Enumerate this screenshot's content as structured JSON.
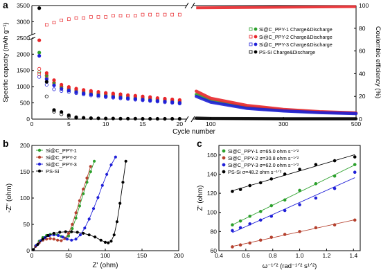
{
  "colors": {
    "g1": "#2ca02c",
    "g2": "#b5412e",
    "g3": "#2020d8",
    "ps": "#000000",
    "eff_red": "#e8262a"
  },
  "panels": [
    {
      "letter": "a",
      "chart_data": {
        "type": "scatter",
        "xlabel": "Cycle number",
        "ylabel": "Specific capacity (mAh g⁻¹)",
        "y2label": "Coulombic efficiency (%)",
        "xlim_left": [
          0,
          21
        ],
        "xlim_right": [
          50,
          500
        ],
        "xticks_left": [
          0,
          5,
          10,
          15,
          20
        ],
        "xticks_right": [
          100,
          300,
          500
        ],
        "ylim": [
          0,
          3500
        ],
        "yticks": [
          0,
          500,
          1000,
          1500,
          2000,
          2500,
          3000,
          3500
        ],
        "y2lim": [
          0,
          100
        ],
        "y2ticks": [
          0,
          20,
          40,
          60,
          80,
          100
        ],
        "legend": [
          "Si@C_PPY-1 Charge&Discharge",
          "Si@C_PPY-2 Charge&Discharge",
          "Si@C_PPY-3 Charge&Discharge",
          "PS-Si Charge&Discharge"
        ],
        "legend_placement": "right",
        "series": [
          {
            "name": "Si@C_PPY-1",
            "color": "g1",
            "charge_x": [
              1,
              2,
              3,
              4,
              5,
              6,
              7,
              8,
              9,
              10,
              11,
              12,
              13,
              14,
              15,
              16,
              17,
              18,
              19,
              20
            ],
            "charge": [
              2050,
              1350,
              1120,
              990,
              920,
              860,
              820,
              790,
              760,
              740,
              720,
              700,
              680,
              660,
              640,
              620,
              600,
              580,
              560,
              540
            ],
            "discharge_x": [
              1,
              2,
              3,
              4,
              5,
              6,
              7,
              8,
              9,
              10,
              11,
              12,
              13,
              14,
              15,
              16,
              17,
              18,
              19,
              20
            ],
            "discharge": [
              1450,
              1260,
              1050,
              950,
              880,
              830,
              790,
              760,
              730,
              710,
              690,
              670,
              650,
              630,
              610,
              590,
              570,
              550,
              530,
              510
            ],
            "long_x": [
              60,
              100,
              200,
              300,
              400,
              500
            ],
            "long": [
              760,
              560,
              360,
              270,
              210,
              180
            ]
          },
          {
            "name": "Si@C_PPY-2",
            "color": "eff_red",
            "charge_x": [
              1,
              2,
              3,
              4,
              5,
              6,
              7,
              8,
              9,
              10,
              11,
              12,
              13,
              14,
              15,
              16,
              17,
              18,
              19,
              20
            ],
            "charge": [
              2430,
              1420,
              1200,
              1060,
              990,
              940,
              900,
              870,
              840,
              810,
              790,
              770,
              740,
              720,
              700,
              680,
              650,
              630,
              610,
              590
            ],
            "discharge_x": [
              1,
              2,
              3,
              4,
              5,
              6,
              7,
              8,
              9,
              10,
              11,
              12,
              13,
              14,
              15,
              16,
              17,
              18,
              19,
              20
            ],
            "discharge": [
              1550,
              1330,
              1120,
              1010,
              950,
              900,
              860,
              830,
              800,
              780,
              760,
              740,
              720,
              700,
              670,
              650,
              630,
              610,
              590,
              570
            ],
            "long_x": [
              60,
              100,
              200,
              300,
              400,
              500
            ],
            "long": [
              860,
              640,
              420,
              300,
              230,
              190
            ]
          },
          {
            "name": "Si@C_PPY-3",
            "color": "g3",
            "charge_x": [
              1,
              2,
              3,
              4,
              5,
              6,
              7,
              8,
              9,
              10,
              11,
              12,
              13,
              14,
              15,
              16,
              17,
              18,
              19,
              20
            ],
            "charge": [
              1950,
              1230,
              1040,
              930,
              880,
              830,
              790,
              760,
              730,
              700,
              680,
              660,
              640,
              620,
              600,
              580,
              560,
              540,
              520,
              500
            ],
            "discharge_x": [
              1,
              2,
              3,
              4,
              5,
              6,
              7,
              8,
              9,
              10,
              11,
              12,
              13,
              14,
              15,
              16,
              17,
              18,
              19,
              20
            ],
            "discharge": [
              1300,
              1060,
              920,
              870,
              840,
              800,
              760,
              730,
              700,
              680,
              660,
              640,
              620,
              600,
              580,
              560,
              540,
              520,
              500,
              480
            ],
            "long_x": [
              60,
              100,
              200,
              300,
              400,
              500
            ],
            "long": [
              700,
              520,
              330,
              250,
              200,
              170
            ]
          },
          {
            "name": "PS-Si",
            "color": "ps",
            "charge_x": [
              1,
              2,
              3,
              4,
              5,
              6,
              7,
              8,
              9,
              10,
              11,
              12,
              13,
              14,
              15,
              16,
              17,
              18,
              19,
              20
            ],
            "charge": [
              3420,
              1150,
              280,
              220,
              120,
              60,
              40,
              30,
              25,
              20,
              20,
              15,
              15,
              15,
              10,
              10,
              10,
              10,
              10,
              10
            ],
            "discharge_x": [
              2,
              3,
              4,
              5,
              6
            ],
            "discharge": [
              700,
              230,
              150,
              80,
              40
            ],
            "long_x": [
              60,
              100,
              200,
              300,
              400,
              500
            ],
            "long": [
              30,
              20,
              15,
              12,
              10,
              10
            ]
          }
        ],
        "efficiency": {
          "x": [
            1,
            2,
            3,
            4,
            5,
            6,
            7,
            8,
            9,
            10,
            11,
            12,
            13,
            14,
            15,
            16,
            17,
            18,
            19,
            20
          ],
          "values": [
            40,
            83,
            85,
            87,
            88,
            89,
            89,
            90,
            90,
            90,
            91,
            91,
            91,
            91,
            92,
            92,
            92,
            92,
            92,
            92
          ],
          "long_x": [
            60,
            500
          ],
          "long": [
            98,
            99
          ]
        }
      }
    },
    {
      "letter": "b",
      "chart_data": {
        "type": "scatter",
        "xlabel": "Z' (ohm)",
        "ylabel": "-Z'' (ohm)",
        "xlim": [
          0,
          200
        ],
        "ylim": [
          0,
          200
        ],
        "xticks": [
          0,
          50,
          100,
          150,
          200
        ],
        "yticks": [
          0,
          50,
          100,
          150,
          200
        ],
        "legend": [
          "Si@C_PPY-1",
          "Si@C_PPY-2",
          "Si@C_PPY-3",
          "PS-Si"
        ],
        "legend_placement": "top-left",
        "series": [
          {
            "name": "Si@C_PPY-1",
            "color": "g1",
            "x": [
              2,
              5,
              10,
              15,
              20,
              25,
              30,
              35,
              40,
              45,
              50,
              55,
              60,
              65,
              70,
              75,
              80,
              85
            ],
            "y": [
              2,
              9,
              18,
              25,
              29,
              31,
              32,
              30,
              27,
              24,
              28,
              42,
              62,
              85,
              108,
              130,
              150,
              170
            ]
          },
          {
            "name": "Si@C_PPY-2",
            "color": "g2",
            "x": [
              2,
              5,
              10,
              15,
              20,
              25,
              30,
              35,
              40,
              45,
              50,
              55,
              60,
              65,
              70,
              75,
              80
            ],
            "y": [
              2,
              8,
              15,
              20,
              22,
              23,
              22,
              20,
              19,
              23,
              33,
              50,
              72,
              95,
              117,
              138,
              160
            ]
          },
          {
            "name": "Si@C_PPY-3",
            "color": "g3",
            "x": [
              2,
              6,
              12,
              18,
              24,
              30,
              36,
              42,
              48,
              54,
              60,
              66,
              72,
              78,
              84,
              90,
              96,
              102,
              108,
              114
            ],
            "y": [
              2,
              10,
              19,
              25,
              29,
              30,
              29,
              26,
              22,
              20,
              22,
              30,
              43,
              60,
              80,
              101,
              124,
              145,
              163,
              178
            ]
          },
          {
            "name": "PS-Si",
            "color": "ps",
            "x": [
              2,
              8,
              15,
              22,
              30,
              38,
              46,
              54,
              62,
              70,
              78,
              86,
              94,
              100,
              104,
              108,
              112,
              116,
              120,
              124,
              128
            ],
            "y": [
              2,
              12,
              22,
              29,
              33,
              35,
              36,
              36,
              35,
              33,
              30,
              26,
              20,
              16,
              15,
              18,
              30,
              55,
              90,
              130,
              170
            ]
          }
        ]
      }
    },
    {
      "letter": "c",
      "chart_data": {
        "type": "scatter",
        "xlabel": "ω⁻¹ᐟ² (rad⁻¹ᐟ² s¹ᐟ²)",
        "ylabel": "Z' (ohm)",
        "xlim": [
          0.4,
          1.45
        ],
        "ylim": [
          60,
          170
        ],
        "xticks": [
          0.4,
          0.6,
          0.8,
          1.0,
          1.2,
          1.4
        ],
        "yticks": [
          60,
          80,
          100,
          120,
          140,
          160
        ],
        "legend": [
          "Si@C_PPY-1 σ=65.0 ohm s⁻¹ᐟ²",
          "Si@C_PPY-2 σ=30.8 ohm s⁻¹ᐟ²",
          "Si@C_PPY-3 σ=62.0 ohm s⁻¹ᐟ²",
          "PS-Si σ=48.2 ohm s⁻¹ᐟ²"
        ],
        "legend_placement": "top-left",
        "series": [
          {
            "name": "Si@C_PPY-1",
            "color": "g1",
            "x": [
              0.5,
              0.56,
              0.63,
              0.71,
              0.79,
              0.89,
              1.0,
              1.12,
              1.26,
              1.41
            ],
            "y": [
              87,
              91,
              96,
              101,
              107,
              113,
              123,
              130,
              138,
              150
            ]
          },
          {
            "name": "Si@C_PPY-2",
            "color": "g2",
            "x": [
              0.5,
              0.56,
              0.63,
              0.71,
              0.79,
              0.89,
              1.0,
              1.12,
              1.26,
              1.41
            ],
            "y": [
              64,
              66,
              68,
              71,
              74,
              77,
              80,
              84,
              87,
              92
            ]
          },
          {
            "name": "Si@C_PPY-3",
            "color": "g3",
            "x": [
              0.5,
              0.56,
              0.63,
              0.71,
              0.79,
              0.89,
              1.0,
              1.12,
              1.26,
              1.41
            ],
            "y": [
              81,
              84,
              88,
              92,
              96,
              102,
              108,
              115,
              125,
              142
            ]
          },
          {
            "name": "PS-Si",
            "color": "ps",
            "x": [
              0.5,
              0.56,
              0.63,
              0.71,
              0.79,
              0.89,
              1.0,
              1.12,
              1.26,
              1.41
            ],
            "y": [
              122,
              124,
              128,
              131,
              135,
              140,
              145,
              150,
              154,
              158
            ]
          }
        ]
      }
    }
  ]
}
